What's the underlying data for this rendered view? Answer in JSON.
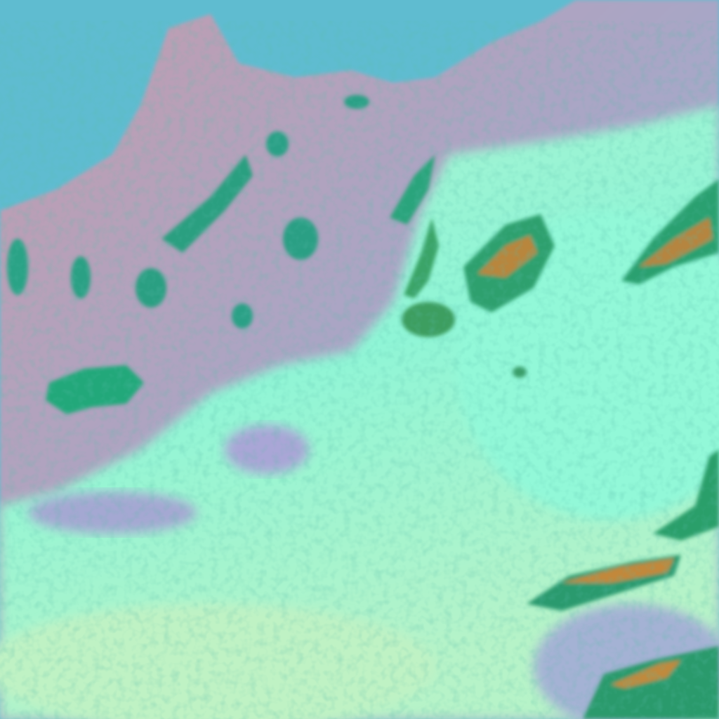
{
  "image": {
    "kind": "false-color satellite imagery",
    "colors": {
      "sea": "#5fbcd0",
      "land_haze": "#a7a6c8",
      "land_pink": "#c99aa8",
      "fog_cyan": "#8ff5d6",
      "fog_light": "#b8f7c8",
      "cloud_green": "#1fa878",
      "cloud_orange": "#c88a3c"
    }
  }
}
